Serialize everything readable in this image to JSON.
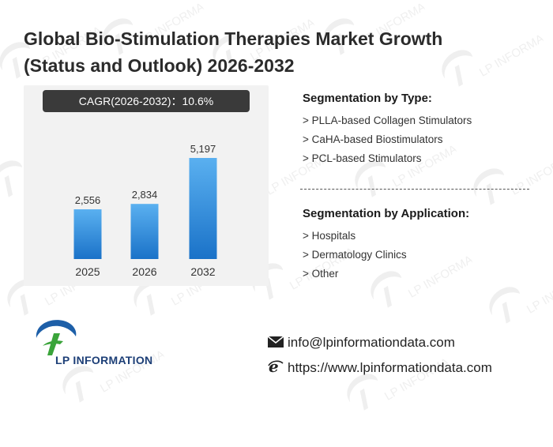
{
  "title": "Global Bio-Stimulation Therapies Market Growth (Status and Outlook) 2026-2032",
  "cagr": {
    "label": "CAGR(2026-2032)：",
    "value": "10.6%"
  },
  "chart_data": {
    "type": "bar",
    "categories": [
      "2025",
      "2026",
      "2032"
    ],
    "values": [
      2556,
      2834,
      5197
    ],
    "value_labels": [
      "2,556",
      "2,834",
      "5,197"
    ],
    "title": "",
    "xlabel": "",
    "ylabel": "",
    "ylim": [
      0,
      5600
    ],
    "grid": false,
    "legend": "none",
    "bar_color_top": "#5ab0f0",
    "bar_color_bottom": "#1a72c8"
  },
  "segmentation_type": {
    "heading": "Segmentation by Type:",
    "items": [
      "> PLLA-based Collagen Stimulators",
      "> CaHA-based Biostimulators",
      "> PCL-based Stimulators"
    ]
  },
  "segmentation_application": {
    "heading": "Segmentation by Application:",
    "items": [
      "> Hospitals",
      "> Dermatology Clinics",
      "> Other"
    ]
  },
  "logo": {
    "text": "LP INFORMATION",
    "watermark_text": "LP INFORMATION",
    "colors": {
      "blue": "#1d5fa8",
      "green": "#3aa43a"
    }
  },
  "contact": {
    "email_icon": "envelope-icon",
    "email": "info@lpinformationdata.com",
    "web_icon": "browser-e-icon",
    "website": "https://www.lpinformationdata.com"
  }
}
